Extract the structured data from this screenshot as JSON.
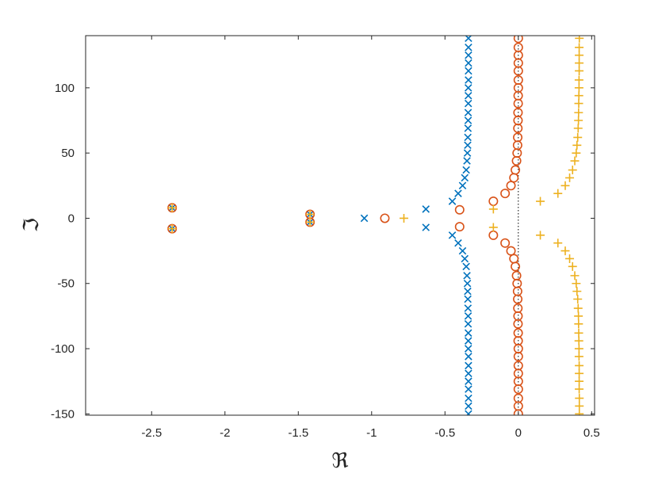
{
  "chart_data": {
    "type": "scatter",
    "xlabel": "ℜ",
    "ylabel": "ℑ",
    "xlim": [
      -2.95,
      0.52
    ],
    "ylim": [
      -151,
      140
    ],
    "xticks": [
      -2.5,
      -2,
      -1.5,
      -1,
      -0.5,
      0,
      0.5
    ],
    "xtick_labels": [
      "-2.5",
      "-2",
      "-1.5",
      "-1",
      "-0.5",
      "0",
      "0.5"
    ],
    "yticks": [
      100,
      50,
      0,
      -50,
      -100,
      -150
    ],
    "ytick_labels": [
      "100",
      "50",
      "0",
      "-50",
      "-100",
      "-150"
    ],
    "grid": false,
    "reference_line": {
      "x": 0,
      "style": "dotted"
    },
    "series": [
      {
        "marker": "x",
        "color": "#0072BD",
        "points": [
          [
            -2.36,
            8
          ],
          [
            -2.36,
            -8
          ],
          [
            -1.42,
            3
          ],
          [
            -1.42,
            -3
          ],
          [
            -1.05,
            0
          ],
          [
            -0.63,
            7
          ],
          [
            -0.63,
            -7
          ],
          [
            -0.45,
            13
          ],
          [
            -0.45,
            -13
          ],
          [
            -0.41,
            19
          ],
          [
            -0.41,
            -19
          ],
          [
            -0.38,
            25
          ],
          [
            -0.38,
            -25
          ],
          [
            -0.365,
            31
          ],
          [
            -0.365,
            -31
          ],
          [
            -0.355,
            37
          ],
          [
            -0.355,
            -37
          ],
          [
            -0.35,
            44
          ],
          [
            -0.35,
            -44
          ],
          [
            -0.347,
            50
          ],
          [
            -0.347,
            -50
          ],
          [
            -0.345,
            56
          ],
          [
            -0.345,
            -56
          ],
          [
            -0.344,
            62
          ],
          [
            -0.344,
            -62
          ],
          [
            -0.343,
            69
          ],
          [
            -0.343,
            -69
          ],
          [
            -0.342,
            75
          ],
          [
            -0.342,
            -75
          ],
          [
            -0.342,
            81
          ],
          [
            -0.342,
            -81
          ],
          [
            -0.341,
            88
          ],
          [
            -0.341,
            -88
          ],
          [
            -0.341,
            94
          ],
          [
            -0.341,
            -94
          ],
          [
            -0.341,
            100
          ],
          [
            -0.341,
            -100
          ],
          [
            -0.34,
            106
          ],
          [
            -0.34,
            -106
          ],
          [
            -0.34,
            113
          ],
          [
            -0.34,
            -113
          ],
          [
            -0.34,
            119
          ],
          [
            -0.34,
            -119
          ],
          [
            -0.34,
            125
          ],
          [
            -0.34,
            -125
          ],
          [
            -0.34,
            131
          ],
          [
            -0.34,
            -131
          ],
          [
            -0.34,
            138
          ],
          [
            -0.34,
            -138
          ],
          [
            -0.34,
            -144
          ],
          [
            -0.34,
            -150
          ]
        ]
      },
      {
        "marker": "o",
        "color": "#D95319",
        "points": [
          [
            -2.36,
            8
          ],
          [
            -2.36,
            -8
          ],
          [
            -1.42,
            3
          ],
          [
            -1.42,
            -3
          ],
          [
            -0.91,
            0
          ],
          [
            -0.4,
            6.5
          ],
          [
            -0.4,
            -6.5
          ],
          [
            -0.17,
            13
          ],
          [
            -0.17,
            -13
          ],
          [
            -0.09,
            19
          ],
          [
            -0.09,
            -19
          ],
          [
            -0.05,
            25
          ],
          [
            -0.05,
            -25
          ],
          [
            -0.03,
            31
          ],
          [
            -0.03,
            -31
          ],
          [
            -0.02,
            37
          ],
          [
            -0.02,
            -37
          ],
          [
            -0.012,
            44
          ],
          [
            -0.012,
            -44
          ],
          [
            -0.008,
            50
          ],
          [
            -0.008,
            -50
          ],
          [
            -0.005,
            56
          ],
          [
            -0.005,
            -56
          ],
          [
            -0.004,
            62
          ],
          [
            -0.004,
            -62
          ],
          [
            -0.003,
            69
          ],
          [
            -0.003,
            -69
          ],
          [
            -0.002,
            75
          ],
          [
            -0.002,
            -75
          ],
          [
            -0.002,
            81
          ],
          [
            -0.002,
            -81
          ],
          [
            -0.001,
            88
          ],
          [
            -0.001,
            -88
          ],
          [
            -0.001,
            94
          ],
          [
            -0.001,
            -94
          ],
          [
            0,
            100
          ],
          [
            0,
            -100
          ],
          [
            0,
            106
          ],
          [
            0,
            -106
          ],
          [
            0,
            113
          ],
          [
            0,
            -113
          ],
          [
            0,
            119
          ],
          [
            0,
            -119
          ],
          [
            0,
            125
          ],
          [
            0,
            -125
          ],
          [
            0,
            131
          ],
          [
            0,
            -131
          ],
          [
            0,
            138
          ],
          [
            0,
            -138
          ],
          [
            0,
            -144
          ],
          [
            0,
            -150
          ]
        ]
      },
      {
        "marker": "+",
        "color": "#EDB120",
        "points": [
          [
            -2.36,
            8
          ],
          [
            -2.36,
            -8
          ],
          [
            -1.42,
            3
          ],
          [
            -1.42,
            -3
          ],
          [
            -0.78,
            0
          ],
          [
            -0.17,
            7
          ],
          [
            -0.17,
            -7
          ],
          [
            0.15,
            13
          ],
          [
            0.15,
            -13
          ],
          [
            0.27,
            19
          ],
          [
            0.27,
            -19
          ],
          [
            0.32,
            25
          ],
          [
            0.32,
            -25
          ],
          [
            0.35,
            31
          ],
          [
            0.35,
            -31
          ],
          [
            0.37,
            37
          ],
          [
            0.37,
            -37
          ],
          [
            0.385,
            44
          ],
          [
            0.385,
            -44
          ],
          [
            0.395,
            50
          ],
          [
            0.395,
            -50
          ],
          [
            0.4,
            56
          ],
          [
            0.4,
            -56
          ],
          [
            0.405,
            62
          ],
          [
            0.405,
            -62
          ],
          [
            0.408,
            69
          ],
          [
            0.408,
            -69
          ],
          [
            0.41,
            75
          ],
          [
            0.41,
            -75
          ],
          [
            0.411,
            81
          ],
          [
            0.411,
            -81
          ],
          [
            0.412,
            88
          ],
          [
            0.412,
            -88
          ],
          [
            0.413,
            94
          ],
          [
            0.413,
            -94
          ],
          [
            0.414,
            100
          ],
          [
            0.414,
            -100
          ],
          [
            0.414,
            106
          ],
          [
            0.414,
            -106
          ],
          [
            0.415,
            113
          ],
          [
            0.415,
            -113
          ],
          [
            0.415,
            119
          ],
          [
            0.415,
            -119
          ],
          [
            0.415,
            125
          ],
          [
            0.415,
            -125
          ],
          [
            0.415,
            131
          ],
          [
            0.415,
            -131
          ],
          [
            0.416,
            138
          ],
          [
            0.416,
            -138
          ],
          [
            0.416,
            -144
          ],
          [
            0.416,
            -150
          ]
        ]
      }
    ]
  }
}
